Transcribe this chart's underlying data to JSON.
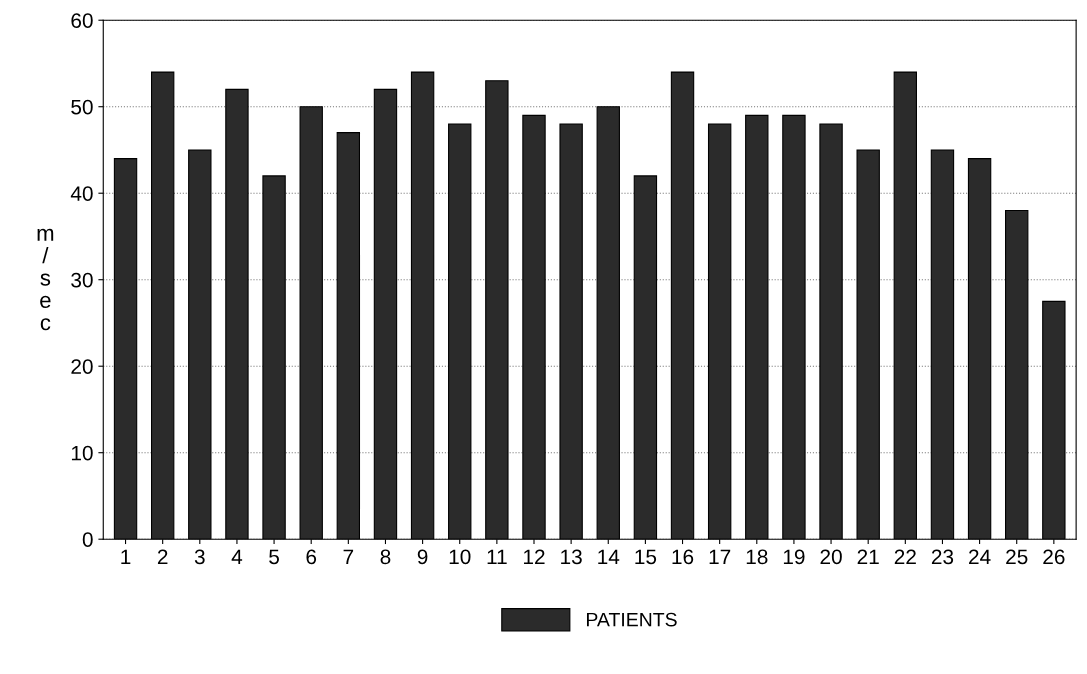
{
  "chart_data": {
    "type": "bar",
    "categories": [
      "1",
      "2",
      "3",
      "4",
      "5",
      "6",
      "7",
      "8",
      "9",
      "10",
      "11",
      "12",
      "13",
      "14",
      "15",
      "16",
      "17",
      "18",
      "19",
      "20",
      "21",
      "22",
      "23",
      "24",
      "25",
      "26"
    ],
    "series": [
      {
        "name": "PATIENTS",
        "color": "#2b2b2b",
        "values": [
          44,
          54,
          45,
          52,
          42,
          50,
          47,
          52,
          54,
          48,
          53,
          49,
          48,
          50,
          42,
          54,
          48,
          49,
          49,
          48,
          45,
          54,
          45,
          44,
          38,
          27.5
        ]
      }
    ],
    "ylabel": "m/sec",
    "ylim": [
      0,
      60
    ],
    "yticks": [
      0,
      10,
      20,
      30,
      40,
      50,
      60
    ],
    "grid": "y",
    "legend": "bottom"
  }
}
